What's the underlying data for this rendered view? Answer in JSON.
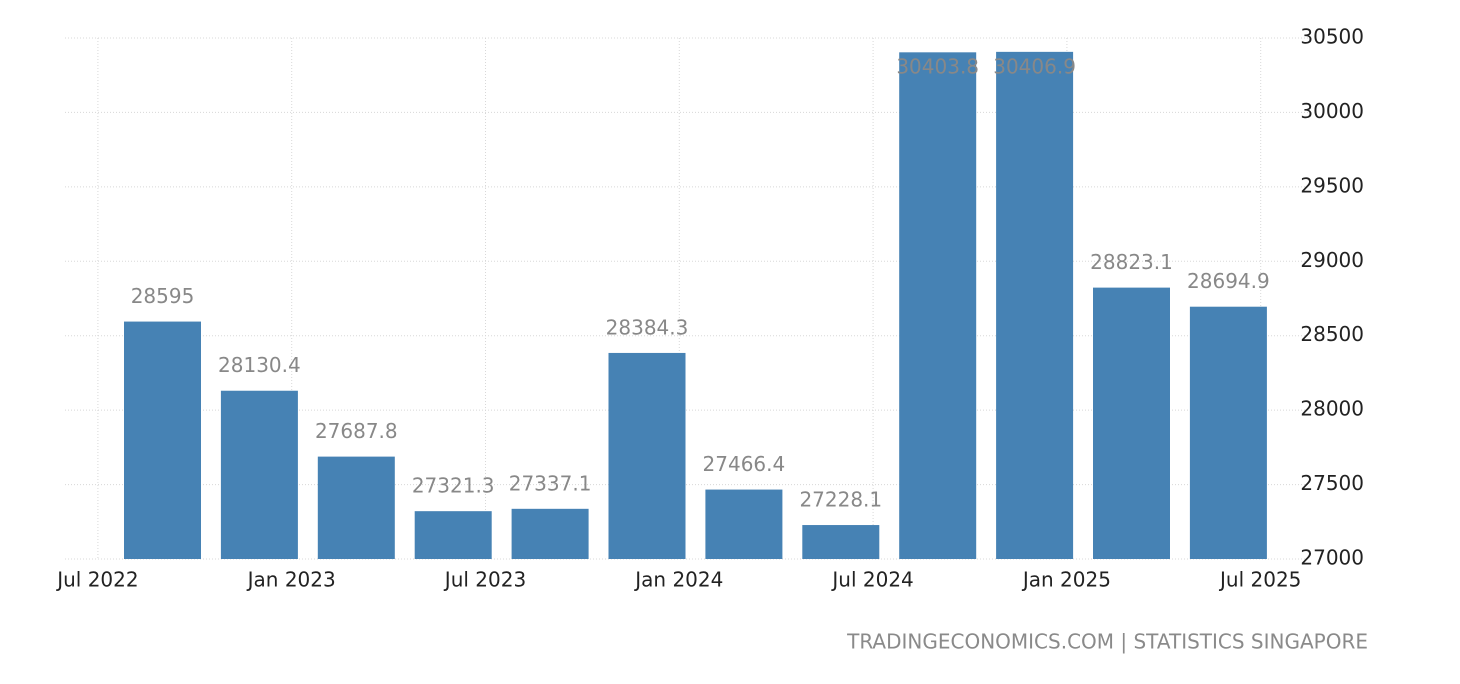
{
  "chart_data": {
    "type": "bar",
    "categories": [
      null,
      null,
      null,
      null,
      null,
      null,
      null,
      null,
      null,
      null,
      null,
      null
    ],
    "values": [
      28595,
      28130.4,
      27687.8,
      27321.3,
      27337.1,
      28384.3,
      27466.4,
      27228.1,
      30403.8,
      30406.9,
      28823.1,
      28694.9
    ],
    "color": "#4682b4",
    "xticks": [
      "Jul 2022",
      "Jan 2023",
      "Jul 2023",
      "Jan 2024",
      "Jul 2024",
      "Jan 2025",
      "Jul 2025"
    ],
    "ylim": [
      27000,
      30500
    ],
    "yticks": [
      27000,
      27500,
      28000,
      28500,
      29000,
      29500,
      30000,
      30500
    ],
    "grid": true,
    "source": "TRADINGECONOMICS.COM | STATISTICS SINGAPORE"
  }
}
